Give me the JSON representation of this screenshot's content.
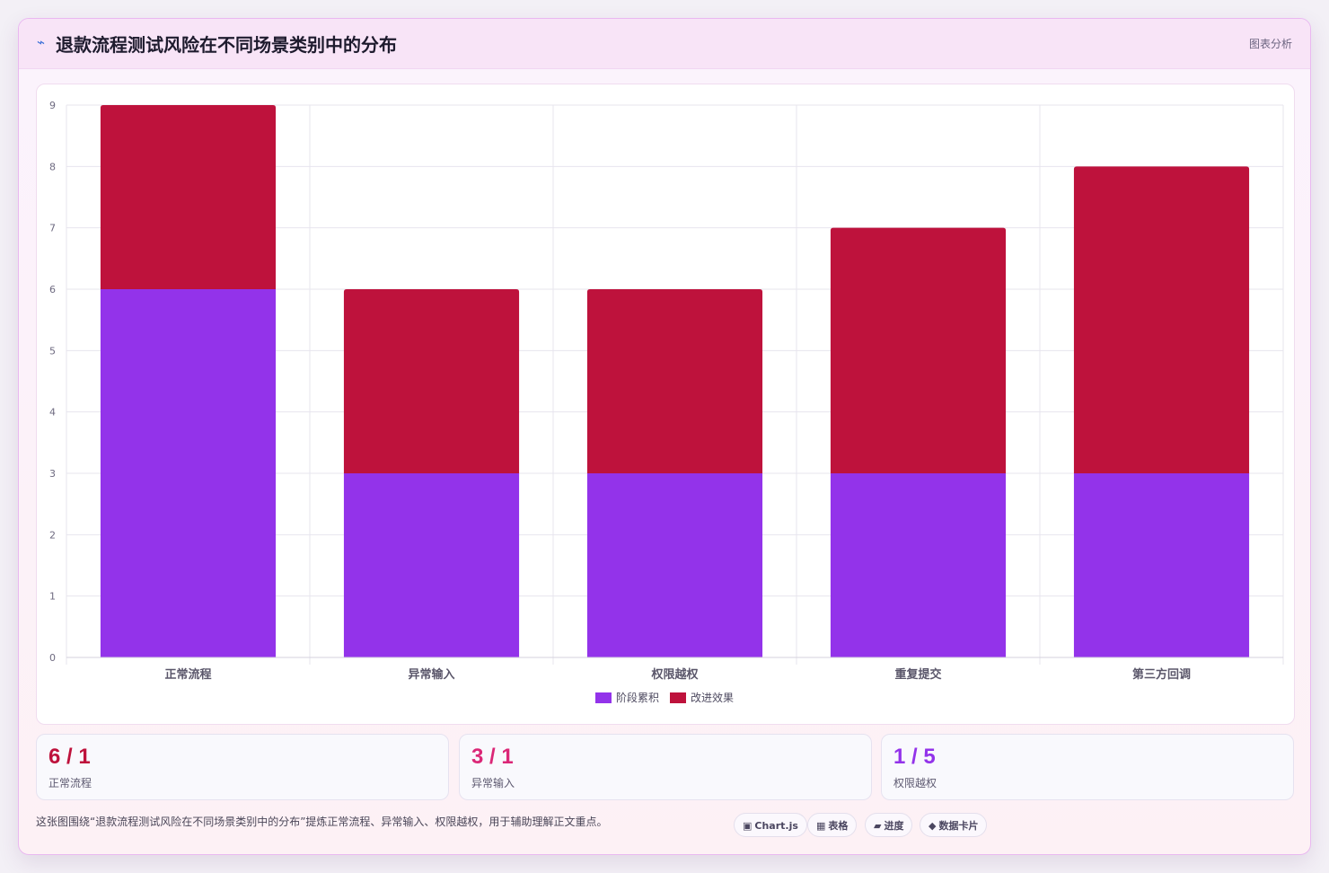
{
  "header": {
    "icon": "⌁",
    "title": "退款流程测试风险在不同场景类别中的分布",
    "link_label": "图表分析"
  },
  "chart_data": {
    "type": "bar",
    "stacked": true,
    "categories": [
      "正常流程",
      "异常输入",
      "权限越权",
      "重复提交",
      "第三方回调"
    ],
    "series": [
      {
        "name": "阶段累积",
        "color": "#9333ea",
        "values": [
          6,
          3,
          3,
          3,
          3
        ]
      },
      {
        "name": "改进效果",
        "color": "#be123c",
        "values": [
          3,
          3,
          3,
          4,
          5
        ]
      }
    ],
    "ylim": [
      0,
      9
    ],
    "yticks": [
      0,
      1,
      2,
      3,
      4,
      5,
      6,
      7,
      8,
      9
    ],
    "grid": true,
    "legend_position": "bottom-center"
  },
  "stats": [
    {
      "value": "6 / 1",
      "label": "正常流程",
      "color": "#be123c"
    },
    {
      "value": "3 / 1",
      "label": "异常输入",
      "color": "#db2777"
    },
    {
      "value": "1 / 5",
      "label": "权限越权",
      "color": "#9333ea"
    }
  ],
  "footer": {
    "text": "这张图围绕“退款流程测试风险在不同场景类别中的分布”提炼正常流程、异常输入、权限越权，用于辅助理解正文重点。",
    "chips": [
      {
        "icon": "▣",
        "label": "Chart.js"
      },
      {
        "icon": "▦",
        "label": "表格"
      },
      {
        "icon": "▰",
        "label": "进度"
      },
      {
        "icon": "◆",
        "label": "数据卡片"
      }
    ]
  }
}
